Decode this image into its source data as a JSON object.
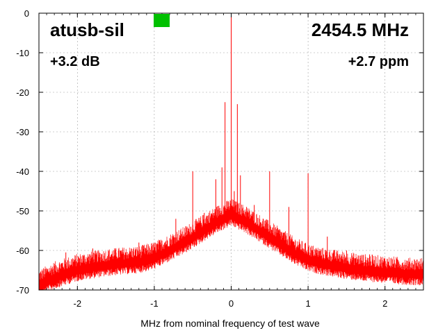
{
  "chart_data": {
    "type": "line",
    "title": "atusb-sil",
    "frequency_label": "2454.5 MHz",
    "gain_label": "+3.2 dB",
    "ppm_label": "+2.7 ppm",
    "xlabel": "MHz from nominal frequency of test wave",
    "ylabel": "",
    "xlim": [
      -2.5,
      2.5
    ],
    "ylim": [
      -70,
      0
    ],
    "xticks": [
      -2,
      -1,
      0,
      1,
      2
    ],
    "yticks": [
      0,
      -10,
      -20,
      -30,
      -40,
      -50,
      -60,
      -70
    ],
    "grid": true,
    "indicator_color": "#00c000",
    "series": [
      {
        "name": "spectrum",
        "color": "#ff0000",
        "noise_floor": {
          "x": [
            -2.5,
            -2.3,
            -2.0,
            -1.7,
            -1.5,
            -1.2,
            -1.0,
            -0.8,
            -0.6,
            -0.4,
            -0.2,
            -0.1,
            0.0,
            0.1,
            0.2,
            0.4,
            0.6,
            0.8,
            1.0,
            1.2,
            1.5,
            1.7,
            2.0,
            2.3,
            2.5
          ],
          "y": [
            -69,
            -67,
            -65,
            -64,
            -63.5,
            -63,
            -62,
            -60,
            -58,
            -55.5,
            -53,
            -52,
            -51,
            -52,
            -53,
            -55.5,
            -58,
            -60.5,
            -62.5,
            -63.5,
            -64.5,
            -65,
            -65.5,
            -66,
            -66
          ]
        },
        "spurs": {
          "x": [
            -2.15,
            -1.8,
            -1.5,
            -1.2,
            -0.9,
            -0.72,
            -0.5,
            -0.35,
            -0.2,
            -0.12,
            -0.08,
            0.0,
            0.04,
            0.08,
            0.12,
            0.2,
            0.3,
            0.5,
            0.75,
            1.0,
            1.25,
            1.5,
            1.8,
            2.15
          ],
          "y": [
            -60.5,
            -59.5,
            -59.5,
            -58,
            -57.5,
            -52,
            -40,
            -50.5,
            -42,
            -39,
            -22.5,
            0,
            -45,
            -23,
            -41,
            -49,
            -48.5,
            -40,
            -49,
            -40.5,
            -56.5,
            -60,
            -61,
            -62.5
          ]
        }
      }
    ]
  }
}
